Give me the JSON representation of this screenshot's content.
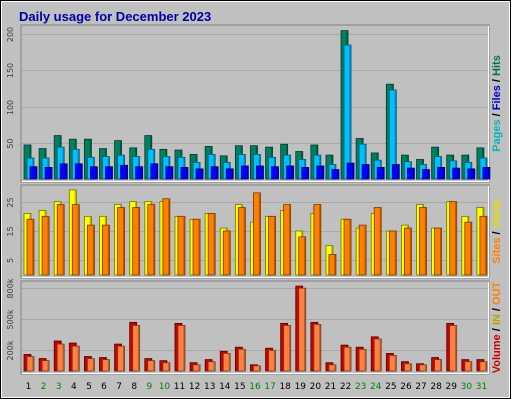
{
  "chart_data": {
    "title": "Daily usage for December 2023",
    "x": [
      "1",
      "2",
      "3",
      "4",
      "5",
      "6",
      "7",
      "8",
      "9",
      "10",
      "11",
      "12",
      "13",
      "14",
      "15",
      "16",
      "17",
      "18",
      "19",
      "20",
      "21",
      "22",
      "23",
      "24",
      "25",
      "26",
      "27",
      "28",
      "29",
      "30",
      "31"
    ],
    "weekend_days": [
      "2",
      "3",
      "9",
      "10",
      "16",
      "17",
      "23",
      "24",
      "30",
      "31"
    ],
    "panels": [
      {
        "id": "hits",
        "type": "bar",
        "ylim": [
          0,
          210
        ],
        "yticks": [
          50,
          100,
          150,
          200
        ],
        "ytick_labels": [
          "50",
          "100",
          "150",
          "200"
        ],
        "side_label": [
          {
            "text": "Pages",
            "color": "#00b8b8"
          },
          {
            "text": " / ",
            "color": "#000000"
          },
          {
            "text": "Files",
            "color": "#0000cc"
          },
          {
            "text": " / ",
            "color": "#000000"
          },
          {
            "text": "Hits",
            "color": "#007050"
          }
        ],
        "series": [
          {
            "name": "Hits",
            "color": "#008060",
            "values": [
              47,
              42,
              60,
              55,
              55,
              42,
              53,
              43,
              60,
              41,
              40,
              34,
              45,
              32,
              46,
              46,
              44,
              48,
              38,
              47,
              33,
              205,
              56,
              36,
              131,
              33,
              27,
              44,
              33,
              33,
              43
            ]
          },
          {
            "name": "Files",
            "color": "#00c0ff",
            "values": [
              29,
              29,
              44,
              41,
              30,
              31,
              33,
              31,
              41,
              31,
              30,
              23,
              34,
              23,
              34,
              34,
              30,
              33,
              27,
              33,
              20,
              185,
              48,
              26,
              123,
              24,
              20,
              31,
              25,
              23,
              29
            ]
          },
          {
            "name": "Pages",
            "color": "#0000ff",
            "values": [
              17,
              16,
              21,
              21,
              17,
              17,
              19,
              17,
              21,
              17,
              16,
              14,
              17,
              14,
              18,
              18,
              17,
              18,
              16,
              18,
              13,
              22,
              20,
              16,
              20,
              15,
              13,
              16,
              15,
              14,
              16
            ]
          }
        ]
      },
      {
        "id": "sites",
        "type": "bar",
        "ylim": [
          0,
          30
        ],
        "yticks": [
          5,
          15,
          25
        ],
        "ytick_labels": [
          "5",
          "15",
          "25"
        ],
        "side_label": [
          {
            "text": "Sites",
            "color": "#ff8000"
          },
          {
            "text": " / ",
            "color": "#000000"
          },
          {
            "text": "Visits",
            "color": "#e0e000"
          }
        ],
        "series": [
          {
            "name": "Visits",
            "color": "#ffff00",
            "values": [
              21,
              22,
              25,
              29,
              20,
              20,
              24,
              25,
              25,
              25,
              20,
              19,
              21,
              16,
              24,
              18,
              20,
              22,
              15,
              21,
              10,
              19,
              16,
              21,
              15,
              17,
              24,
              16,
              25,
              20,
              23
            ]
          },
          {
            "name": "Sites",
            "color": "#ff8000",
            "values": [
              19,
              20,
              24,
              24,
              17,
              17,
              23,
              23,
              24,
              26,
              20,
              19,
              21,
              15,
              23,
              28,
              20,
              24,
              13,
              24,
              7,
              19,
              17,
              23,
              15,
              16,
              23,
              16,
              25,
              18,
              20
            ]
          }
        ]
      },
      {
        "id": "volume",
        "type": "bar",
        "ylim": [
          0,
          850000
        ],
        "yticks": [
          200000,
          500000,
          800000
        ],
        "ytick_labels": [
          "200k",
          "500k",
          "800k"
        ],
        "side_label": [
          {
            "text": "Volume",
            "color": "#cc0000"
          },
          {
            "text": " / ",
            "color": "#000000"
          },
          {
            "text": "IN",
            "color": "#c0a000"
          },
          {
            "text": " / ",
            "color": "#000000"
          },
          {
            "text": "OUT",
            "color": "#ff8000"
          }
        ],
        "series": [
          {
            "name": "Volume",
            "color": "#cc0000",
            "values": [
              160000,
              120000,
              290000,
              270000,
              140000,
              130000,
              260000,
              470000,
              120000,
              100000,
              460000,
              80000,
              110000,
              190000,
              230000,
              60000,
              220000,
              460000,
              820000,
              470000,
              80000,
              250000,
              230000,
              330000,
              170000,
              90000,
              70000,
              130000,
              460000,
              110000,
              110000
            ]
          },
          {
            "name": "OUT",
            "color": "#ff8040",
            "values": [
              140000,
              100000,
              260000,
              240000,
              120000,
              110000,
              240000,
              440000,
              100000,
              80000,
              440000,
              60000,
              90000,
              170000,
              210000,
              50000,
              200000,
              440000,
              800000,
              450000,
              60000,
              230000,
              210000,
              310000,
              150000,
              70000,
              60000,
              110000,
              440000,
              90000,
              90000
            ]
          }
        ]
      }
    ]
  }
}
